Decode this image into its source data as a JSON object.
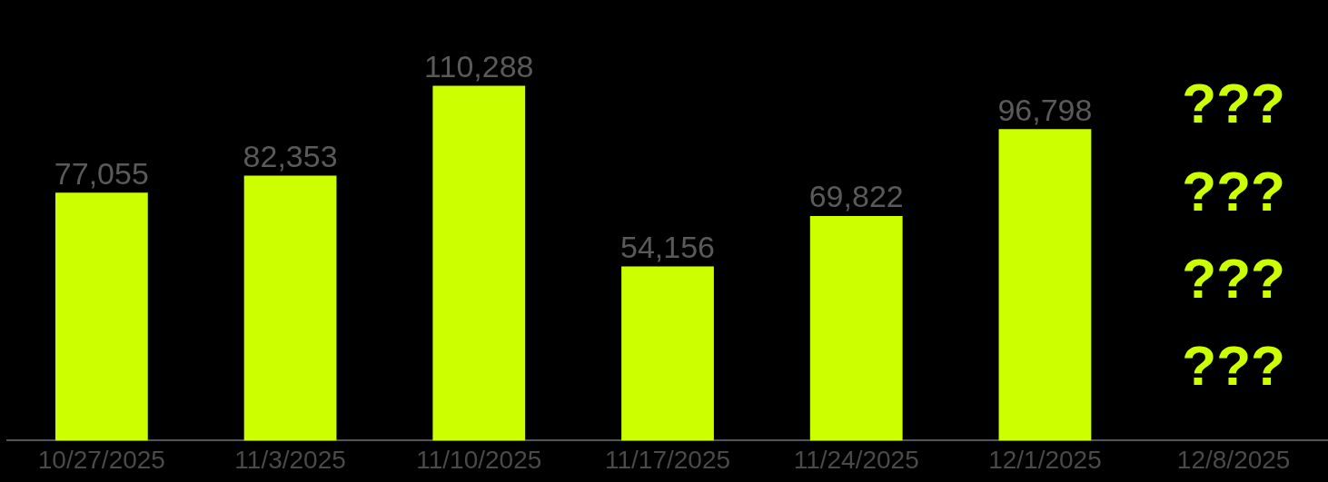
{
  "chart_data": {
    "type": "bar",
    "relative": false,
    "categories": [
      "10/27/2025",
      "11/3/2025",
      "11/10/2025",
      "11/17/2025",
      "11/24/2025",
      "12/1/2025",
      "12/8/2025"
    ],
    "values": [
      77055,
      82353,
      110288,
      54156,
      69822,
      96798,
      null
    ],
    "value_labels": [
      "77,055",
      "82,353",
      "110,288",
      "54,156",
      "69,822",
      "96,798",
      null
    ],
    "color": "#ccff00",
    "grid": false,
    "legend": false,
    "annotations": [
      "???",
      "???",
      "???",
      "???"
    ]
  }
}
